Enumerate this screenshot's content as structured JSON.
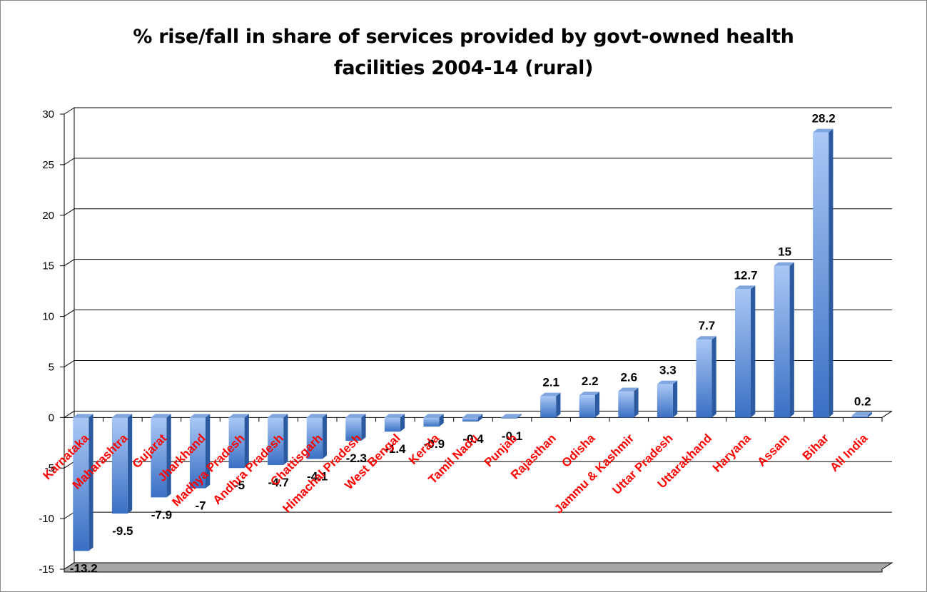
{
  "chart_data": {
    "type": "bar",
    "title_lines": [
      "% rise/fall in share of services provided by govt-owned health",
      "facilities 2004-14 (rural)"
    ],
    "categories": [
      "Karnataka",
      "Maharashtra",
      "Gujarat",
      "Jharkhand",
      "Madhya Pradesh",
      "Andhra Pradesh",
      "Chattisgarh",
      "Himachal Pradesh",
      "West Bengal",
      "Kerala",
      "Tamil Nadu",
      "Punjab",
      "Rajasthan",
      "Odisha",
      "Jammu & Kashmir",
      "Uttar Pradesh",
      "Uttarakhand",
      "Haryana",
      "Assam",
      "Bihar",
      "All India"
    ],
    "values": [
      -13.2,
      -9.5,
      -7.9,
      -7,
      -5,
      -4.7,
      -4.1,
      -2.3,
      -1.4,
      -0.9,
      -0.4,
      -0.1,
      2.1,
      2.2,
      2.6,
      3.3,
      7.7,
      12.7,
      15,
      28.2,
      0.2
    ],
    "value_labels": [
      "-13.2",
      "-9.5",
      "-7.9",
      "-7",
      "-5",
      "-4.7",
      "-4.1",
      "-2.3",
      "-1.4",
      "-0.9",
      "-0.4",
      "-0.1",
      "2.1",
      "2.2",
      "2.6",
      "3.3",
      "7.7",
      "12.7",
      "15",
      "28.2",
      "0.2"
    ],
    "y_ticks": [
      "30",
      "25",
      "20",
      "15",
      "10",
      "5",
      "0",
      "-5",
      "-10",
      "-15"
    ],
    "xlabel": "",
    "ylabel": "",
    "ylim": [
      -15,
      30
    ],
    "grid": true,
    "legend": "none",
    "colors": {
      "bar_light": "#a9c8f5",
      "bar_dark": "#3a6fc4",
      "bar_top": "#7fa6de",
      "bar_side": "#2c5aa0",
      "category_label": "#ff0000",
      "floor": "#a6a6a6"
    }
  }
}
